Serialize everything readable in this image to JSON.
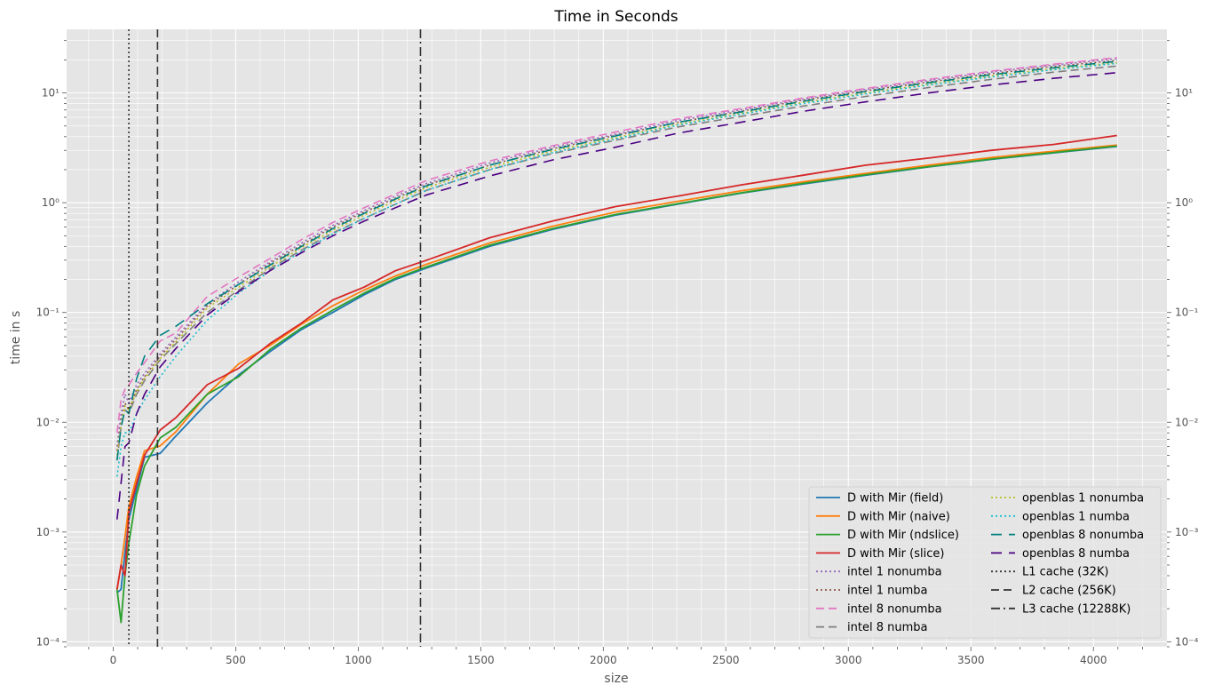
{
  "chart_data": {
    "type": "line",
    "title": "Time in Seconds",
    "xlabel": "size",
    "ylabel": "time in s",
    "xlim": [
      -190,
      4300
    ],
    "ylim": [
      9e-05,
      38
    ],
    "yscale": "log",
    "grid": true,
    "legend_position": "lower-right",
    "legend_columns": 2,
    "x_ticks": [
      0,
      500,
      1000,
      1500,
      2000,
      2500,
      3000,
      3500,
      4000
    ],
    "x_tick_labels": [
      "0",
      "500",
      "1000",
      "1500",
      "2000",
      "2500",
      "3000",
      "3500",
      "4000"
    ],
    "y_ticks": [
      0.0001,
      0.001,
      0.01,
      0.1,
      1,
      10
    ],
    "y_tick_labels": [
      "10⁻⁴",
      "10⁻³",
      "10⁻²",
      "10⁻¹",
      "10⁰",
      "10¹"
    ],
    "series": [
      {
        "name": "D with Mir (field)",
        "color": "#1f77b4",
        "dash": "solid",
        "x": [
          16,
          32,
          48,
          64,
          96,
          128,
          192,
          256,
          384,
          512,
          640,
          768,
          896,
          1024,
          1152,
          1280,
          1536,
          1792,
          2048,
          2304,
          2560,
          2816,
          3072,
          3328,
          3584,
          3840,
          4096
        ],
        "y": [
          0.00028,
          0.0003,
          0.00065,
          0.0013,
          0.0025,
          0.0048,
          0.0052,
          0.0075,
          0.015,
          0.027,
          0.044,
          0.07,
          0.1,
          0.145,
          0.2,
          0.255,
          0.4,
          0.57,
          0.77,
          0.97,
          1.22,
          1.48,
          1.78,
          2.12,
          2.48,
          2.85,
          3.25
        ]
      },
      {
        "name": "D with Mir (naive)",
        "color": "#ff7f0e",
        "dash": "solid",
        "x": [
          16,
          32,
          48,
          64,
          96,
          128,
          192,
          256,
          384,
          512,
          640,
          768,
          896,
          1024,
          1152,
          1280,
          1536,
          1792,
          2048,
          2304,
          2560,
          2816,
          3072,
          3328,
          3584,
          3840,
          4096
        ],
        "y": [
          0.0003,
          0.0005,
          0.0009,
          0.0017,
          0.0032,
          0.0055,
          0.0061,
          0.0082,
          0.018,
          0.034,
          0.05,
          0.078,
          0.115,
          0.16,
          0.215,
          0.275,
          0.43,
          0.61,
          0.82,
          1.03,
          1.28,
          1.55,
          1.85,
          2.2,
          2.58,
          2.95,
          3.35
        ]
      },
      {
        "name": "D with Mir (ndslice)",
        "color": "#2ca02c",
        "dash": "solid",
        "x": [
          16,
          32,
          48,
          64,
          96,
          128,
          192,
          256,
          384,
          512,
          640,
          768,
          896,
          1024,
          1152,
          1280,
          1536,
          1792,
          2048,
          2304,
          2560,
          2816,
          3072,
          3328,
          3584,
          3840,
          4096
        ],
        "y": [
          0.0003,
          0.00015,
          0.0004,
          0.0008,
          0.0022,
          0.004,
          0.0072,
          0.009,
          0.018,
          0.026,
          0.046,
          0.072,
          0.105,
          0.15,
          0.205,
          0.26,
          0.41,
          0.58,
          0.78,
          0.98,
          1.23,
          1.5,
          1.8,
          2.13,
          2.5,
          2.87,
          3.28
        ]
      },
      {
        "name": "D with Mir (slice)",
        "color": "#d62728",
        "dash": "solid",
        "x": [
          16,
          32,
          48,
          64,
          96,
          128,
          192,
          256,
          384,
          512,
          640,
          768,
          896,
          1024,
          1152,
          1280,
          1536,
          1792,
          2048,
          2304,
          2560,
          2816,
          3072,
          3328,
          3584,
          3840,
          4096
        ],
        "y": [
          0.0003,
          0.0005,
          0.0004,
          0.0015,
          0.0028,
          0.005,
          0.0085,
          0.011,
          0.022,
          0.031,
          0.052,
          0.08,
          0.13,
          0.17,
          0.24,
          0.3,
          0.48,
          0.68,
          0.92,
          1.15,
          1.45,
          1.78,
          2.2,
          2.55,
          3.0,
          3.4,
          4.1
        ]
      },
      {
        "name": "intel 1 nonumba",
        "color": "#9467bd",
        "dash": "dot",
        "x": [
          16,
          32,
          48,
          64,
          96,
          128,
          192,
          256,
          384,
          512,
          640,
          768,
          896,
          1024,
          1152,
          1280,
          1536,
          1792,
          2048,
          2304,
          2560,
          2816,
          3072,
          3328,
          3584,
          3840,
          4096
        ],
        "y": [
          0.006,
          0.012,
          0.018,
          0.015,
          0.022,
          0.028,
          0.042,
          0.06,
          0.12,
          0.19,
          0.29,
          0.43,
          0.62,
          0.85,
          1.15,
          1.5,
          2.3,
          3.2,
          4.2,
          5.6,
          7.0,
          8.8,
          10.8,
          13.0,
          15.5,
          18.0,
          20.5
        ]
      },
      {
        "name": "intel 1 numba",
        "color": "#8c564b",
        "dash": "dot",
        "x": [
          16,
          32,
          48,
          64,
          96,
          128,
          192,
          256,
          384,
          512,
          640,
          768,
          896,
          1024,
          1152,
          1280,
          1536,
          1792,
          2048,
          2304,
          2560,
          2816,
          3072,
          3328,
          3584,
          3840,
          4096
        ],
        "y": [
          0.0055,
          0.01,
          0.015,
          0.013,
          0.02,
          0.026,
          0.04,
          0.057,
          0.115,
          0.18,
          0.28,
          0.41,
          0.6,
          0.82,
          1.1,
          1.45,
          2.2,
          3.1,
          4.1,
          5.4,
          6.8,
          8.6,
          10.5,
          12.6,
          15.0,
          17.5,
          19.8
        ]
      },
      {
        "name": "intel 8 nonumba",
        "color": "#e377c2",
        "dash": "dash",
        "x": [
          16,
          32,
          48,
          64,
          96,
          128,
          192,
          256,
          384,
          512,
          640,
          768,
          896,
          1024,
          1152,
          1280,
          1536,
          1792,
          2048,
          2304,
          2560,
          2816,
          3072,
          3328,
          3584,
          3840,
          4096
        ],
        "y": [
          0.008,
          0.016,
          0.02,
          0.022,
          0.028,
          0.035,
          0.055,
          0.065,
          0.14,
          0.21,
          0.31,
          0.46,
          0.66,
          0.9,
          1.2,
          1.6,
          2.4,
          3.3,
          4.4,
          5.8,
          7.2,
          9.0,
          11.0,
          13.3,
          15.8,
          18.3,
          21.0
        ]
      },
      {
        "name": "intel 8 numba",
        "color": "#7f7f7f",
        "dash": "dash",
        "x": [
          16,
          32,
          48,
          64,
          96,
          128,
          192,
          256,
          384,
          512,
          640,
          768,
          896,
          1024,
          1152,
          1280,
          1536,
          1792,
          2048,
          2304,
          2560,
          2816,
          3072,
          3328,
          3584,
          3840,
          4096
        ],
        "y": [
          0.0045,
          0.009,
          0.013,
          0.012,
          0.018,
          0.024,
          0.037,
          0.052,
          0.1,
          0.16,
          0.25,
          0.37,
          0.53,
          0.72,
          0.97,
          1.3,
          2.0,
          2.8,
          3.7,
          4.9,
          6.1,
          7.6,
          9.3,
          11.2,
          13.3,
          15.5,
          17.6
        ]
      },
      {
        "name": "openblas 1 nonumba",
        "color": "#bcbd22",
        "dash": "dot",
        "x": [
          16,
          32,
          48,
          64,
          96,
          128,
          192,
          256,
          384,
          512,
          640,
          768,
          896,
          1024,
          1152,
          1280,
          1536,
          1792,
          2048,
          2304,
          2560,
          2816,
          3072,
          3328,
          3584,
          3840,
          4096
        ],
        "y": [
          0.005,
          0.0095,
          0.014,
          0.013,
          0.019,
          0.025,
          0.038,
          0.054,
          0.11,
          0.17,
          0.26,
          0.39,
          0.56,
          0.77,
          1.04,
          1.38,
          2.1,
          2.95,
          3.9,
          5.2,
          6.5,
          8.2,
          10.0,
          12.0,
          14.3,
          16.6,
          18.9
        ]
      },
      {
        "name": "openblas 1 numba",
        "color": "#17becf",
        "dash": "dot",
        "x": [
          16,
          32,
          48,
          64,
          96,
          128,
          192,
          256,
          384,
          512,
          640,
          768,
          896,
          1024,
          1152,
          1280,
          1536,
          1792,
          2048,
          2304,
          2560,
          2816,
          3072,
          3328,
          3584,
          3840,
          4096
        ],
        "y": [
          0.0032,
          0.006,
          0.008,
          0.008,
          0.012,
          0.016,
          0.026,
          0.04,
          0.085,
          0.15,
          0.24,
          0.36,
          0.52,
          0.72,
          0.97,
          1.3,
          2.0,
          2.85,
          3.8,
          5.1,
          6.4,
          8.0,
          9.8,
          11.8,
          14.0,
          16.3,
          18.6
        ]
      },
      {
        "name": "openblas 8 nonumba",
        "color": "#008080",
        "dash": "longdash",
        "x": [
          16,
          32,
          48,
          64,
          96,
          128,
          192,
          256,
          384,
          512,
          640,
          768,
          896,
          1024,
          1152,
          1280,
          1536,
          1792,
          2048,
          2304,
          2560,
          2816,
          3072,
          3328,
          3584,
          3840,
          4096
        ],
        "y": [
          0.0045,
          0.009,
          0.013,
          0.012,
          0.025,
          0.04,
          0.062,
          0.075,
          0.12,
          0.18,
          0.27,
          0.4,
          0.58,
          0.8,
          1.08,
          1.43,
          2.2,
          3.05,
          4.05,
          5.4,
          6.7,
          8.4,
          10.3,
          12.4,
          14.7,
          17.0,
          19.4
        ]
      },
      {
        "name": "openblas 8 numba",
        "color": "#4b0082",
        "dash": "longdash",
        "x": [
          16,
          32,
          48,
          64,
          96,
          128,
          192,
          256,
          384,
          512,
          640,
          768,
          896,
          1024,
          1152,
          1280,
          1536,
          1792,
          2048,
          2304,
          2560,
          2816,
          3072,
          3328,
          3584,
          3840,
          4096
        ],
        "y": [
          0.0013,
          0.0028,
          0.006,
          0.0065,
          0.012,
          0.018,
          0.032,
          0.047,
          0.095,
          0.155,
          0.24,
          0.35,
          0.5,
          0.68,
          0.9,
          1.18,
          1.75,
          2.45,
          3.2,
          4.3,
          5.4,
          6.8,
          8.3,
          10.0,
          11.8,
          13.6,
          15.3
        ]
      }
    ],
    "vlines": [
      {
        "name": "L1 cache (32K)",
        "x": 64,
        "color": "#333333",
        "dash": "dot"
      },
      {
        "name": "L2 cache (256K)",
        "x": 181,
        "color": "#333333",
        "dash": "dash"
      },
      {
        "name": "L3 cache (12288K)",
        "x": 1254,
        "color": "#333333",
        "dash": "dashdot"
      }
    ]
  }
}
